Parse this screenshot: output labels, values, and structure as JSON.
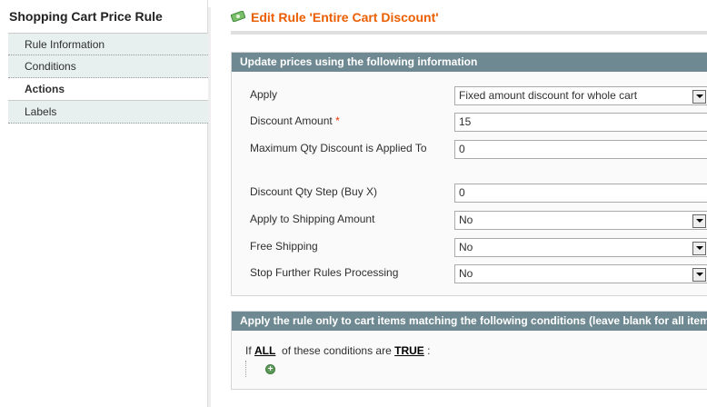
{
  "sidebar": {
    "title": "Shopping Cart Price Rule",
    "tabs": [
      {
        "label": "Rule Information"
      },
      {
        "label": "Conditions"
      },
      {
        "label": "Actions",
        "active": true
      },
      {
        "label": "Labels"
      }
    ]
  },
  "header": {
    "title": "Edit Rule 'Entire Cart Discount'",
    "icon": "money-icon",
    "color": "#eb5e00"
  },
  "actions": {
    "legend": "Update prices using the following information",
    "fields": [
      {
        "label": "Apply",
        "type": "select",
        "value": "Fixed amount discount for whole cart"
      },
      {
        "label": "Discount Amount",
        "required": "*",
        "type": "text",
        "value": "15"
      },
      {
        "label": "Maximum Qty Discount is Applied To",
        "type": "text",
        "value": "0"
      },
      {
        "label": "Discount Qty Step (Buy X)",
        "type": "text",
        "value": "0"
      },
      {
        "label": "Apply to Shipping Amount",
        "type": "select",
        "value": "No"
      },
      {
        "label": "Free Shipping",
        "type": "select",
        "value": "No"
      },
      {
        "label": "Stop Further Rules Processing",
        "type": "select",
        "value": "No"
      }
    ]
  },
  "conditions": {
    "legend": "Apply the rule only to cart items matching the following conditions (leave blank for all items)",
    "prefix": "If",
    "aggregator": "ALL",
    "middle": "of these conditions are",
    "value": "TRUE",
    "suffix": ":",
    "add_icon": "add-condition-icon"
  }
}
